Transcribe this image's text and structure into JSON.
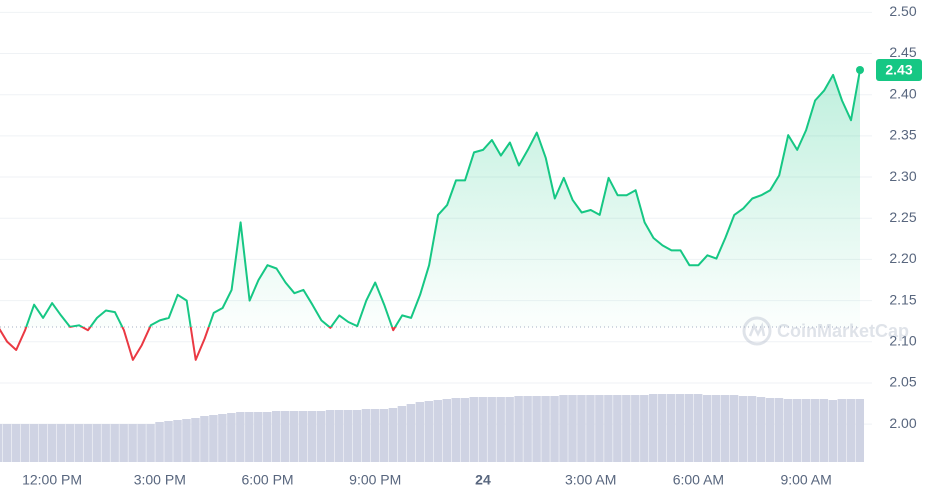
{
  "chart_data": {
    "type": "line",
    "watermark": "CoinMarketCap",
    "x": [
      10.5,
      10.75,
      11,
      11.25,
      11.5,
      11.75,
      12,
      12.25,
      12.5,
      12.75,
      13,
      13.25,
      13.5,
      13.75,
      14,
      14.25,
      14.5,
      14.75,
      15,
      15.25,
      15.5,
      15.75,
      16,
      16.25,
      16.5,
      16.75,
      17,
      17.25,
      17.5,
      17.75,
      18,
      18.25,
      18.5,
      18.75,
      19,
      19.25,
      19.5,
      19.75,
      20,
      20.25,
      20.5,
      20.75,
      21,
      21.25,
      21.5,
      21.75,
      22,
      22.25,
      22.5,
      22.75,
      23,
      23.25,
      23.5,
      23.75,
      24,
      24.25,
      24.5,
      24.75,
      25,
      25.25,
      25.5,
      25.75,
      26,
      26.25,
      26.5,
      26.75,
      27,
      27.25,
      27.5,
      27.75,
      28,
      28.25,
      28.5,
      28.75,
      29,
      29.25,
      29.5,
      29.75,
      30,
      30.25,
      30.5,
      30.75,
      31,
      31.25,
      31.5,
      31.75,
      32,
      32.25,
      32.5,
      32.75,
      33,
      33.25,
      33.5,
      33.75,
      34,
      34.25,
      34.5
    ],
    "series": [
      {
        "name": "Price",
        "color": "#16c784",
        "below_color": "#ea3943",
        "values": [
          2.118,
          2.1,
          2.09,
          2.114,
          2.145,
          2.129,
          2.147,
          2.132,
          2.118,
          2.12,
          2.114,
          2.129,
          2.138,
          2.136,
          2.114,
          2.078,
          2.096,
          2.12,
          2.126,
          2.129,
          2.157,
          2.15,
          2.078,
          2.104,
          2.135,
          2.141,
          2.163,
          2.245,
          2.15,
          2.175,
          2.193,
          2.189,
          2.172,
          2.159,
          2.163,
          2.145,
          2.126,
          2.117,
          2.132,
          2.124,
          2.119,
          2.15,
          2.172,
          2.145,
          2.114,
          2.132,
          2.129,
          2.157,
          2.193,
          2.254,
          2.266,
          2.296,
          2.296,
          2.33,
          2.333,
          2.345,
          2.326,
          2.342,
          2.314,
          2.333,
          2.354,
          2.323,
          2.274,
          2.299,
          2.272,
          2.257,
          2.26,
          2.254,
          2.299,
          2.278,
          2.278,
          2.284,
          2.245,
          2.226,
          2.217,
          2.211,
          2.211,
          2.193,
          2.193,
          2.205,
          2.201,
          2.226,
          2.254,
          2.262,
          2.274,
          2.278,
          2.284,
          2.302,
          2.351,
          2.333,
          2.357,
          2.393,
          2.405,
          2.424,
          2.393,
          2.369,
          2.43
        ]
      },
      {
        "name": "Volume",
        "color": "#cfd3e3",
        "values": [
          38,
          38,
          38,
          38,
          38,
          38,
          38,
          38,
          38,
          38,
          38,
          38,
          38,
          38,
          38,
          38,
          38,
          38,
          40,
          41,
          42,
          43,
          44,
          46,
          47,
          48,
          49,
          50,
          50,
          50,
          50,
          51,
          51,
          51,
          51,
          51,
          51,
          52,
          52,
          52,
          52,
          53,
          53,
          53,
          54,
          56,
          58,
          60,
          61,
          62,
          63,
          64,
          64,
          65,
          65,
          65,
          65,
          65,
          66,
          66,
          66,
          66,
          66,
          67,
          67,
          67,
          67,
          67,
          67,
          67,
          67,
          67,
          67,
          68,
          68,
          68,
          68,
          68,
          68,
          67,
          67,
          67,
          67,
          66,
          66,
          65,
          64,
          64,
          63,
          63,
          63,
          63,
          63,
          62,
          63,
          63,
          63
        ]
      }
    ],
    "baseline": 2.118,
    "current_price": 2.43,
    "xlim": [
      10.55,
      34.5
    ],
    "xticks": [
      {
        "value": 12,
        "label": "12:00 PM"
      },
      {
        "value": 15,
        "label": "3:00 PM"
      },
      {
        "value": 18,
        "label": "6:00 PM"
      },
      {
        "value": 21,
        "label": "9:00 PM"
      },
      24,
      {
        "value": 27,
        "label": "3:00 AM"
      },
      {
        "value": 30,
        "label": "6:00 AM"
      },
      {
        "value": 33,
        "label": "9:00 AM"
      }
    ],
    "ylim": [
      1.954,
      2.515
    ],
    "yticks": [
      {
        "value": 2,
        "label": "2.00"
      },
      2.05,
      {
        "value": 2.1,
        "label": "2.10"
      },
      2.15,
      {
        "value": 2.2,
        "label": "2.20"
      },
      2.25,
      {
        "value": 2.3,
        "label": "2.30"
      },
      2.35,
      {
        "value": 2.4,
        "label": "2.40"
      },
      2.45,
      {
        "value": 2.5,
        "label": "2.50"
      }
    ],
    "volume_ylim": [
      0,
      100
    ],
    "grid": true
  }
}
